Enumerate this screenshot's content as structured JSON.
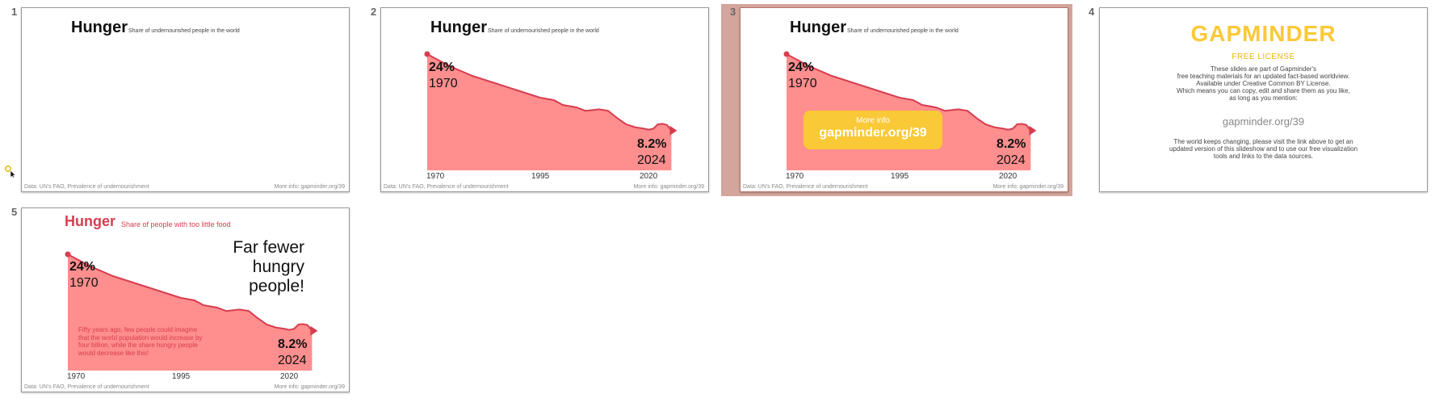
{
  "slides": [
    {
      "number": "1",
      "title": "Hunger",
      "subtitle": "Share of undernourished people in the world",
      "footer_left": "Data: UN's FAO, Prevalence of undernourishment",
      "footer_right": "More info: gapminder.org/39"
    },
    {
      "number": "2",
      "title": "Hunger",
      "subtitle": "Share of undernourished people in the world",
      "start_value": "24%",
      "start_year": "1970",
      "end_value": "8.2%",
      "end_year": "2024",
      "ticks": [
        "1970",
        "1995",
        "2020"
      ],
      "footer_left": "Data: UN's FAO, Prevalence of undernourishment",
      "footer_right": "More info: gapminder.org/39"
    },
    {
      "number": "3",
      "selected": true,
      "title": "Hunger",
      "subtitle": "Share of undernourished people in the world",
      "start_value": "24%",
      "start_year": "1970",
      "end_value": "8.2%",
      "end_year": "2024",
      "ticks": [
        "1970",
        "1995",
        "2020"
      ],
      "more_info_label": "More info",
      "more_info_url": "gapminder.org/39",
      "footer_left": "Data: UN's FAO, Prevalence of undernourishment",
      "footer_right": "More info: gapminder.org/39"
    },
    {
      "number": "4",
      "logo": "GAPMINDER",
      "free_license": "FREE LICENSE",
      "license_text": "These slides are part of Gapminder's\nfree teaching materials for an updated fact-based worldview.\nAvailable under Creative Common BY License.\nWhich means you can copy, edit and share them as you like,\nas long as you mention:",
      "url": "gapminder.org/39",
      "update_text": "The world keeps changing, please visit the link above to get an\nupdated version of this slideshow and to use our free visualization\ntools and links to the data sources."
    },
    {
      "number": "5",
      "title": "Hunger",
      "subtitle": "Share of people with too little food",
      "start_value": "24%",
      "start_year": "1970",
      "end_value": "8.2%",
      "end_year": "2024",
      "ticks": [
        "1970",
        "1995",
        "2020"
      ],
      "headline": "Far fewer\nhungry\npeople!",
      "note": "Fifty years ago, few people could imagine\nthat the world population would increase by\nfour billion, while the share hungry people\nwould decrease like this!",
      "footer_left": "Data: UN's FAO, Prevalence of undernourishment",
      "footer_right": "More info: gapminder.org/39"
    }
  ],
  "colors": {
    "area_fill": "#ff8e8e",
    "line": "#d63e4f",
    "accent_yellow": "#f9c937",
    "selection": "#d4a59c"
  },
  "chart_data": {
    "type": "area",
    "x": [
      1970,
      1975,
      1980,
      1985,
      1990,
      1995,
      1998,
      2000,
      2003,
      2005,
      2008,
      2010,
      2012,
      2014,
      2016,
      2018,
      2019,
      2020,
      2021,
      2022,
      2023,
      2024
    ],
    "y": [
      24,
      21.5,
      19.5,
      18,
      16.5,
      15,
      14.5,
      13.5,
      13,
      12.3,
      12.6,
      12.3,
      10.8,
      9.5,
      8.9,
      8.6,
      8.4,
      8.6,
      9.5,
      9.6,
      9.4,
      8.2
    ],
    "ylim": [
      0,
      26
    ],
    "xlim": [
      1970,
      2025
    ]
  }
}
